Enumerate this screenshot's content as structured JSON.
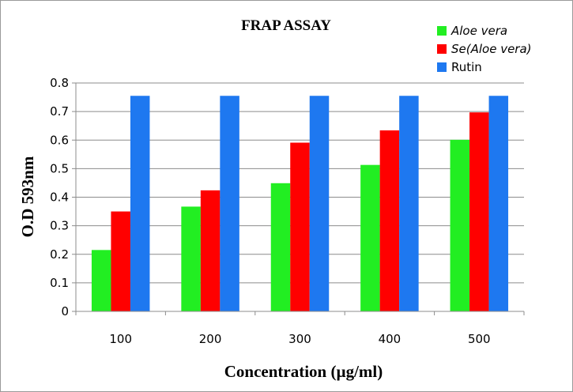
{
  "chart_data": {
    "type": "bar",
    "title": "FRAP ASSAY",
    "xlabel": "Concentration (µg/ml)",
    "ylabel": "O.D 593nm",
    "categories": [
      "100",
      "200",
      "300",
      "400",
      "500"
    ],
    "ylim": [
      0,
      0.8
    ],
    "yticks": [
      "0",
      "0.1",
      "0.2",
      "0.3",
      "0.4",
      "0.5",
      "0.6",
      "0.7",
      "0.8"
    ],
    "grid": true,
    "legend_position": "top-right",
    "series": [
      {
        "name": "Aloe vera",
        "italic": true,
        "color": "#22ee22",
        "values": [
          0.215,
          0.367,
          0.449,
          0.513,
          0.601
        ]
      },
      {
        "name": "Se(Aloe vera)",
        "italic": true,
        "color": "#ff0000",
        "values": [
          0.35,
          0.424,
          0.591,
          0.634,
          0.697
        ]
      },
      {
        "name": "Rutin",
        "italic": false,
        "color": "#1e78f0",
        "values": [
          0.755,
          0.755,
          0.755,
          0.755,
          0.755
        ]
      }
    ]
  }
}
